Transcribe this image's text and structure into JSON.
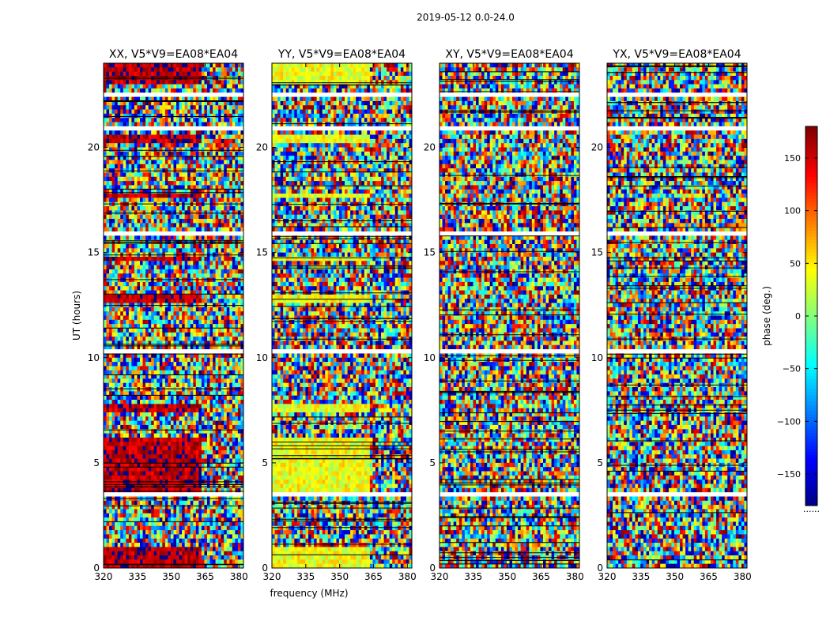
{
  "chart_data": {
    "type": "heatmap",
    "title": "2019-05-12 0.0-24.0",
    "xlabel": "frequency (MHz)",
    "ylabel": "UT (hours)",
    "colorbar_label": "phase (deg.)",
    "xlim": [
      320,
      382
    ],
    "ylim": [
      0,
      24
    ],
    "x_ticks": [
      320,
      335,
      350,
      365,
      380
    ],
    "y_ticks": [
      0,
      5,
      10,
      15,
      20
    ],
    "colorbar_range": [
      -180,
      180
    ],
    "colorbar_ticks": [
      150,
      100,
      50,
      0,
      -50,
      -100,
      -150
    ],
    "colorbar_tick_labels": [
      "150",
      "100",
      "50",
      "0",
      "−50",
      "−100",
      "−150"
    ],
    "colorbar_footer": "......",
    "colormap": "jet",
    "panels": [
      {
        "title": "XX, V5*V9=EA08*EA04",
        "polarization": "XX",
        "coherent_phase_deg": 160
      },
      {
        "title": "YY, V5*V9=EA08*EA04",
        "polarization": "YY",
        "coherent_phase_deg": 40
      },
      {
        "title": "XY, V5*V9=EA08*EA04",
        "polarization": "XY",
        "coherent_phase_deg": null
      },
      {
        "title": "YX, V5*V9=EA08*EA04",
        "polarization": "YX",
        "coherent_phase_deg": null
      }
    ],
    "flagged_time_ranges_hours": [
      [
        22.4,
        22.6
      ],
      [
        20.8,
        21.0
      ],
      [
        15.8,
        16.1
      ],
      [
        10.2,
        10.4
      ],
      [
        3.5,
        3.6
      ],
      [
        3.15,
        3.25
      ]
    ],
    "coherent_time_ranges_hours": [
      [
        0.0,
        0.9
      ],
      [
        3.5,
        3.8
      ],
      [
        3.8,
        6.2
      ],
      [
        7.4,
        7.8
      ],
      [
        12.6,
        13.0
      ],
      [
        14.6,
        14.8
      ],
      [
        17.7,
        17.9
      ],
      [
        20.2,
        20.7
      ],
      [
        23.0,
        24.0
      ]
    ]
  }
}
